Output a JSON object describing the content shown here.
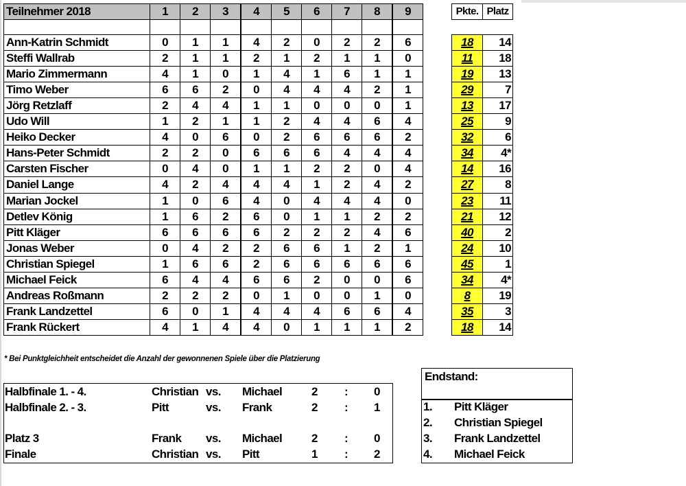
{
  "table": {
    "title": "Teilnehmer 2018",
    "columns": [
      "1",
      "2",
      "3",
      "4",
      "5",
      "6",
      "7",
      "8",
      "9"
    ],
    "points_header": "Pkte.",
    "place_header": "Platz",
    "highlight_color": "#ffff33",
    "header_color": "#c0c0c0",
    "rows": [
      {
        "name": "Ann-Katrin Schmidt",
        "scores": [
          "0",
          "1",
          "1",
          "4",
          "2",
          "0",
          "2",
          "2",
          "6"
        ],
        "points": "18",
        "place": "14"
      },
      {
        "name": "Steffi Wallrab",
        "scores": [
          "2",
          "1",
          "1",
          "2",
          "1",
          "2",
          "1",
          "1",
          "0"
        ],
        "points": "11",
        "place": "18"
      },
      {
        "name": "Mario Zimmermann",
        "scores": [
          "4",
          "1",
          "0",
          "1",
          "4",
          "1",
          "6",
          "1",
          "1"
        ],
        "points": "19",
        "place": "13"
      },
      {
        "name": "Timo Weber",
        "scores": [
          "6",
          "6",
          "2",
          "0",
          "4",
          "4",
          "4",
          "2",
          "1"
        ],
        "points": "29",
        "place": "7"
      },
      {
        "name": "Jörg Retzlaff",
        "scores": [
          "2",
          "4",
          "4",
          "1",
          "1",
          "0",
          "0",
          "0",
          "1"
        ],
        "points": "13",
        "place": "17"
      },
      {
        "name": "Udo Will",
        "scores": [
          "1",
          "2",
          "1",
          "1",
          "2",
          "4",
          "4",
          "6",
          "4"
        ],
        "points": "25",
        "place": "9"
      },
      {
        "name": "Heiko Decker",
        "scores": [
          "4",
          "0",
          "6",
          "0",
          "2",
          "6",
          "6",
          "6",
          "2"
        ],
        "points": "32",
        "place": "6"
      },
      {
        "name": "Hans-Peter Schmidt",
        "scores": [
          "2",
          "2",
          "0",
          "6",
          "6",
          "6",
          "4",
          "4",
          "4"
        ],
        "points": "34",
        "place": "4*"
      },
      {
        "name": "Carsten Fischer",
        "scores": [
          "0",
          "4",
          "0",
          "1",
          "1",
          "2",
          "2",
          "0",
          "4"
        ],
        "points": "14",
        "place": "16"
      },
      {
        "name": "Daniel Lange",
        "scores": [
          "4",
          "2",
          "4",
          "4",
          "4",
          "1",
          "2",
          "4",
          "2"
        ],
        "points": "27",
        "place": "8"
      },
      {
        "name": "Marian Jockel",
        "scores": [
          "1",
          "0",
          "6",
          "4",
          "0",
          "4",
          "4",
          "4",
          "0"
        ],
        "points": "23",
        "place": "11"
      },
      {
        "name": "Detlev König",
        "scores": [
          "1",
          "6",
          "2",
          "6",
          "0",
          "1",
          "1",
          "2",
          "2"
        ],
        "points": "21",
        "place": "12"
      },
      {
        "name": "Pitt Kläger",
        "scores": [
          "6",
          "6",
          "6",
          "6",
          "2",
          "2",
          "2",
          "4",
          "6"
        ],
        "points": "40",
        "place": "2"
      },
      {
        "name": "Jonas Weber",
        "scores": [
          "0",
          "4",
          "2",
          "2",
          "6",
          "6",
          "1",
          "2",
          "1"
        ],
        "points": "24",
        "place": "10"
      },
      {
        "name": "Christian Spiegel",
        "scores": [
          "1",
          "6",
          "6",
          "2",
          "6",
          "6",
          "6",
          "6",
          "6"
        ],
        "points": "45",
        "place": "1"
      },
      {
        "name": "Michael Feick",
        "scores": [
          "6",
          "4",
          "4",
          "6",
          "6",
          "2",
          "0",
          "0",
          "6"
        ],
        "points": "34",
        "place": "4*"
      },
      {
        "name": "Andreas Roßmann",
        "scores": [
          "2",
          "2",
          "2",
          "0",
          "1",
          "0",
          "0",
          "1",
          "0"
        ],
        "points": "8",
        "place": "19"
      },
      {
        "name": "Frank Landzettel",
        "scores": [
          "6",
          "0",
          "1",
          "4",
          "4",
          "4",
          "6",
          "6",
          "4"
        ],
        "points": "35",
        "place": "3"
      },
      {
        "name": "Frank Rückert",
        "scores": [
          "4",
          "1",
          "4",
          "4",
          "0",
          "1",
          "1",
          "1",
          "2"
        ],
        "points": "18",
        "place": "14"
      }
    ]
  },
  "footnote": "* Bei Punktgleichheit entscheidet die Anzahl der gewonnenen Spiele über die Platzierung",
  "finals": [
    {
      "round": "Halbfinale 1. - 4.",
      "p1": "Christian",
      "vs": "vs.",
      "p2": "Michael",
      "s1": "2",
      "sep": ":",
      "s2": "0"
    },
    {
      "round": "Halbfinale 2. - 3.",
      "p1": "Pitt",
      "vs": "vs.",
      "p2": "Frank",
      "s1": "2",
      "sep": ":",
      "s2": "1"
    },
    {
      "round": "Platz 3",
      "p1": "Frank",
      "vs": "vs.",
      "p2": "Michael",
      "s1": "2",
      "sep": ":",
      "s2": "0"
    },
    {
      "round": "Finale",
      "p1": "Christian",
      "vs": "vs.",
      "p2": "Pitt",
      "s1": "1",
      "sep": ":",
      "s2": "2"
    }
  ],
  "standings": {
    "title": "Endstand:",
    "items": [
      {
        "rank": "1.",
        "name": "Pitt Kläger"
      },
      {
        "rank": "2.",
        "name": "Christian Spiegel"
      },
      {
        "rank": "3.",
        "name": "Frank Landzettel"
      },
      {
        "rank": "4.",
        "name": "Michael Feick"
      }
    ]
  }
}
